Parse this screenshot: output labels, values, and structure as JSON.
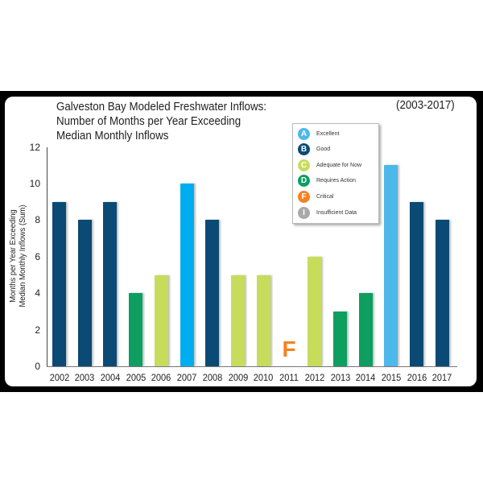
{
  "chart_data": {
    "type": "bar",
    "title": "Galveston Bay Modeled Freshwater Inflows: Number of Months per Year Exceeding Median Monthly Inflows",
    "title_lines": [
      "Galveston Bay Modeled Freshwater Inflows:",
      "Number of Months per Year Exceeding",
      "Median Monthly Inflows"
    ],
    "subtitle": "(2003-2017)",
    "xlabel": "",
    "ylabel_lines": [
      "Months per Year Exceeding",
      "Median Monthly Inflows (Sum)"
    ],
    "ylim": [
      0,
      12
    ],
    "yticks": [
      "0",
      "2",
      "4",
      "6",
      "8",
      "10",
      "12"
    ],
    "grid": false,
    "legend_position": "top-right-inset",
    "categories": [
      "2002",
      "2003",
      "2004",
      "2005",
      "2006",
      "2007",
      "2008",
      "2009",
      "2010",
      "2011",
      "2012",
      "2013",
      "2014",
      "2015",
      "2016",
      "2017"
    ],
    "values": [
      9,
      8,
      9,
      4,
      5,
      10,
      8,
      5,
      5,
      0,
      6,
      3,
      4,
      11,
      9,
      8
    ],
    "grades": [
      "B",
      "B",
      "B",
      "D",
      "C",
      "A",
      "B",
      "C",
      "C",
      "F",
      "C",
      "D",
      "D",
      "A",
      "B",
      "B"
    ],
    "annotations": [
      {
        "category": "2011",
        "text": "F",
        "color": "#f58220"
      }
    ],
    "legend": [
      {
        "grade": "A",
        "label": "Excellent",
        "color": "#4db8ea"
      },
      {
        "grade": "B",
        "label": "Good",
        "color": "#0a4a74"
      },
      {
        "grade": "C",
        "label": "Adequate for Now",
        "color": "#c8dc5c"
      },
      {
        "grade": "D",
        "label": "Requires Action",
        "color": "#0e9f60"
      },
      {
        "grade": "F",
        "label": "Critical",
        "color": "#f58220"
      },
      {
        "grade": "I",
        "label": "Insufficient Data",
        "color": "#a7a9ac"
      }
    ],
    "bar_colors": [
      "#0a4a74",
      "#0a4a74",
      "#0a4a74",
      "#0e9f60",
      "#c8dc5c",
      "#00aeef",
      "#0a4a74",
      "#c8dc5c",
      "#c8dc5c",
      "#ffffff",
      "#c8dc5c",
      "#0e9f60",
      "#0e9f60",
      "#4db8ea",
      "#0a4a74",
      "#0a4a74"
    ]
  }
}
